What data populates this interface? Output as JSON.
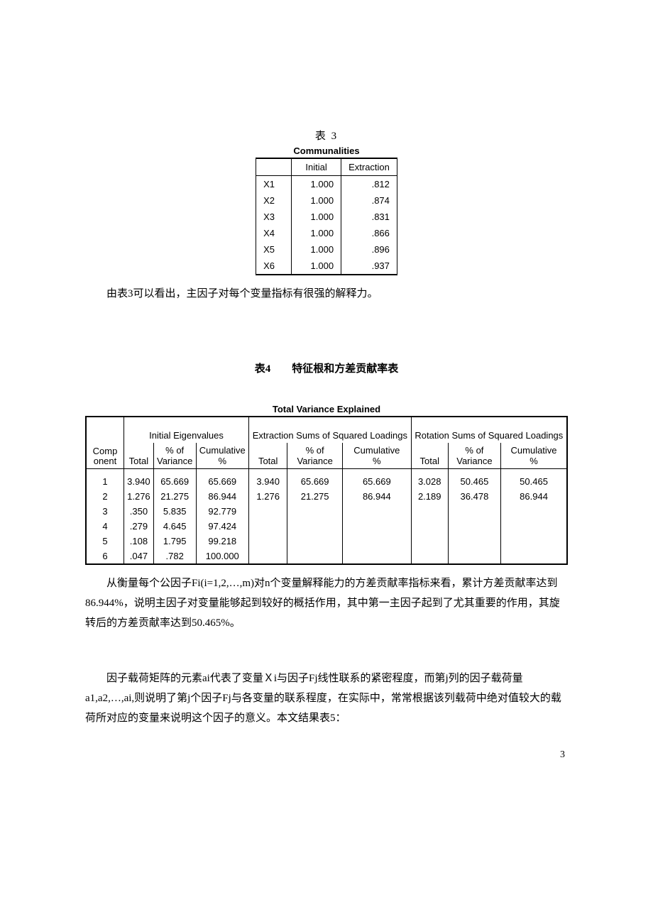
{
  "table3": {
    "caption": "表 3",
    "subtitle": "Communalities",
    "headers": [
      "",
      "Initial",
      "Extraction"
    ],
    "rows": [
      [
        "X1",
        "1.000",
        ".812"
      ],
      [
        "X2",
        "1.000",
        ".874"
      ],
      [
        "X3",
        "1.000",
        ".831"
      ],
      [
        "X4",
        "1.000",
        ".866"
      ],
      [
        "X5",
        "1.000",
        ".896"
      ],
      [
        "X6",
        "1.000",
        ".937"
      ]
    ]
  },
  "para1": "由表3可以看出，主因子对每个变量指标有很强的解释力。",
  "title4": "表4　　特征根和方差贡献率表",
  "table4": {
    "subtitle": "Total Variance Explained",
    "group_headers": [
      "",
      "Initial Eigenvalues",
      "Extraction Sums of Squared Loadings",
      "Rotation Sums of Squared Loadings"
    ],
    "sub_headers": [
      "Component",
      "Total",
      "% of Variance",
      "Cumulative %",
      "Total",
      "% of Variance",
      "Cumulative %",
      "Total",
      "% of Variance",
      "Cumulative %"
    ],
    "rows": [
      [
        "1",
        "3.940",
        "65.669",
        "65.669",
        "3.940",
        "65.669",
        "65.669",
        "3.028",
        "50.465",
        "50.465"
      ],
      [
        "2",
        "1.276",
        "21.275",
        "86.944",
        "1.276",
        "21.275",
        "86.944",
        "2.189",
        "36.478",
        "86.944"
      ],
      [
        "3",
        ".350",
        "5.835",
        "92.779",
        "",
        "",
        "",
        "",
        "",
        ""
      ],
      [
        "4",
        ".279",
        "4.645",
        "97.424",
        "",
        "",
        "",
        "",
        "",
        ""
      ],
      [
        "5",
        ".108",
        "1.795",
        "99.218",
        "",
        "",
        "",
        "",
        "",
        ""
      ],
      [
        "6",
        ".047",
        ".782",
        "100.000",
        "",
        "",
        "",
        "",
        "",
        ""
      ]
    ]
  },
  "para2": "从衡量每个公因子Fi(i=1,2,…,m)对n个变量解释能力的方差贡献率指标来看，累计方差贡献率达到86.944%，说明主因子对变量能够起到较好的概括作用，其中第一主因子起到了尤其重要的作用，其旋转后的方差贡献率达到50.465%。",
  "para3": "因子载荷矩阵的元素ai代表了变量Ｘi与因子Fj线性联系的紧密程度，而第j列的因子载荷量a1,a2,…,ai,则说明了第j个因子Fj与各变量的联系程度，在实际中，常常根据该列载荷中绝对值较大的载荷所对应的变量来说明这个因子的意义。本文结果表5：",
  "page_num": "3"
}
